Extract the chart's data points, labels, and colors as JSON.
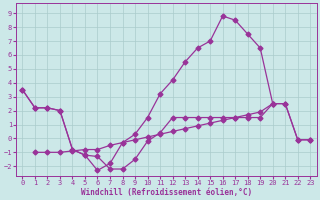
{
  "xlabel": "Windchill (Refroidissement éolien,°C)",
  "bg_color": "#cce8e8",
  "grid_color": "#aacccc",
  "line_color": "#993399",
  "xlim": [
    -0.5,
    23.5
  ],
  "ylim": [
    -2.7,
    9.7
  ],
  "xticks": [
    0,
    1,
    2,
    3,
    4,
    5,
    6,
    7,
    8,
    9,
    10,
    11,
    12,
    13,
    14,
    15,
    16,
    17,
    18,
    19,
    20,
    21,
    22,
    23
  ],
  "yticks": [
    -2,
    -1,
    0,
    1,
    2,
    3,
    4,
    5,
    6,
    7,
    8,
    9
  ],
  "line1_x": [
    0,
    1,
    2,
    3,
    4,
    5,
    6,
    7,
    8,
    9,
    10,
    11,
    12,
    13,
    14,
    15,
    16,
    17,
    18,
    19,
    20
  ],
  "line1_y": [
    3.5,
    2.2,
    2.2,
    2.0,
    -0.8,
    -1.2,
    -2.3,
    -1.8,
    -0.3,
    0.3,
    1.5,
    3.2,
    4.2,
    5.5,
    6.5,
    7.0,
    8.8,
    8.5,
    7.5,
    6.5,
    2.5
  ],
  "line2_x": [
    1,
    2,
    3,
    4,
    5,
    6,
    7,
    8,
    9,
    10,
    11,
    12,
    13,
    14,
    15,
    16,
    17,
    18,
    19,
    20,
    21,
    22,
    23
  ],
  "line2_y": [
    -1.0,
    -1.0,
    -1.0,
    -0.9,
    -0.8,
    -0.8,
    -0.5,
    -0.3,
    -0.1,
    0.1,
    0.3,
    0.5,
    0.7,
    0.9,
    1.1,
    1.3,
    1.5,
    1.7,
    1.9,
    2.5,
    2.5,
    -0.1,
    -0.1
  ],
  "line3_x": [
    0,
    1,
    2,
    3,
    4,
    5,
    6,
    7,
    8,
    9,
    10,
    11,
    12,
    13,
    14,
    15,
    16,
    17,
    18,
    19,
    20,
    21,
    22,
    23
  ],
  "line3_y": [
    3.5,
    2.2,
    2.2,
    2.0,
    -0.8,
    -1.2,
    -1.3,
    -2.2,
    -2.2,
    -1.5,
    -0.2,
    0.4,
    1.5,
    1.5,
    1.5,
    1.5,
    1.5,
    1.5,
    1.5,
    1.5,
    2.5,
    2.5,
    -0.1,
    -0.1
  ],
  "marker": "D",
  "markersize": 2.5,
  "linewidth": 0.9
}
